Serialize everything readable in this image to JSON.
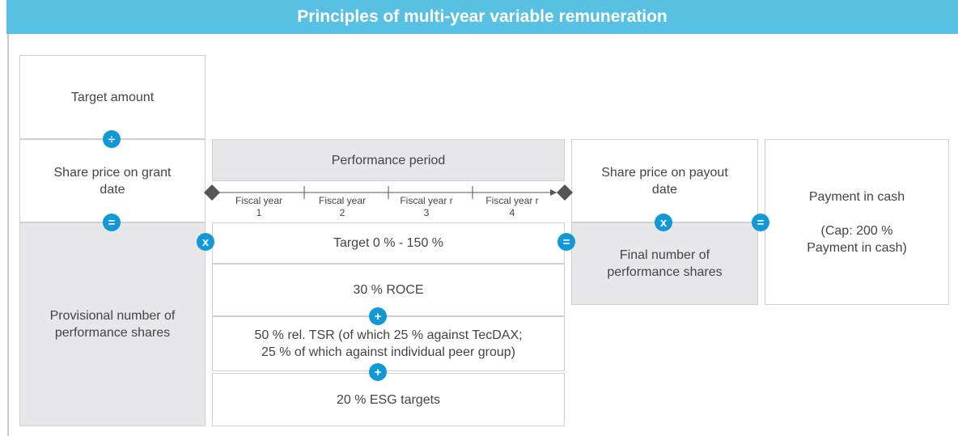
{
  "title": "Principles of multi-year variable remuneration",
  "boxes": {
    "target_amount": "Target amount",
    "share_price_grant": "Share price on grant\ndate",
    "provisional_shares": "Provisional number of\nperformance shares",
    "performance_period": "Performance period",
    "target_range": "Target 0 % - 150 %",
    "roce": "30 % ROCE",
    "tsr": "50 % rel. TSR (of which 25 % against TecDAX;\n25 % of which against individual peer group)",
    "esg": "20 % ESG targets",
    "share_price_payout": "Share price on payout\ndate",
    "final_shares": "Final number of\nperformance shares",
    "payment": "Payment in cash\n\n(Cap: 200 %\nPayment in cash)"
  },
  "fiscal_years": [
    {
      "label": "Fiscal year",
      "number": "1"
    },
    {
      "label": "Fiscal year",
      "number": "2"
    },
    {
      "label": "Fiscal year r",
      "number": "3"
    },
    {
      "label": "Fiscal year r",
      "number": "4"
    }
  ],
  "operators": [
    "÷",
    "=",
    "x",
    "=",
    "x",
    "=",
    "+",
    "+"
  ]
}
